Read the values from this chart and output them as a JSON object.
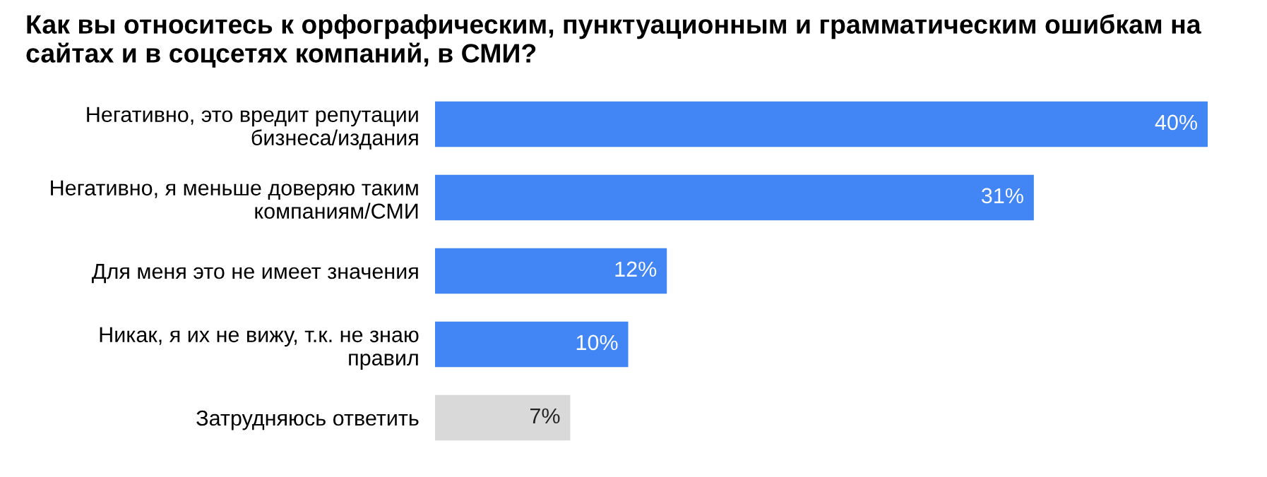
{
  "chart_data": {
    "type": "bar",
    "orientation": "horizontal",
    "title": "Как вы относитесь к орфографическим, пунктуационным и грамматическим ошибкам на сайтах и в соцсетях компаний, в СМИ?",
    "categories": [
      "Негативно, это вредит репутации\nбизнеса/издания",
      "Негативно, я меньше доверяю таким\nкомпаниям/СМИ",
      "Для меня это не имеет значения",
      "Никак, я их не вижу, т.к. не знаю\nправил",
      "Затрудняюсь ответить"
    ],
    "values": [
      40,
      31,
      12,
      10,
      7
    ],
    "value_labels": [
      "40%",
      "31%",
      "12%",
      "10%",
      "7%"
    ],
    "colors": [
      "#4285f4",
      "#4285f4",
      "#4285f4",
      "#4285f4",
      "#d9d9d9"
    ],
    "grid": false,
    "legend": false
  }
}
